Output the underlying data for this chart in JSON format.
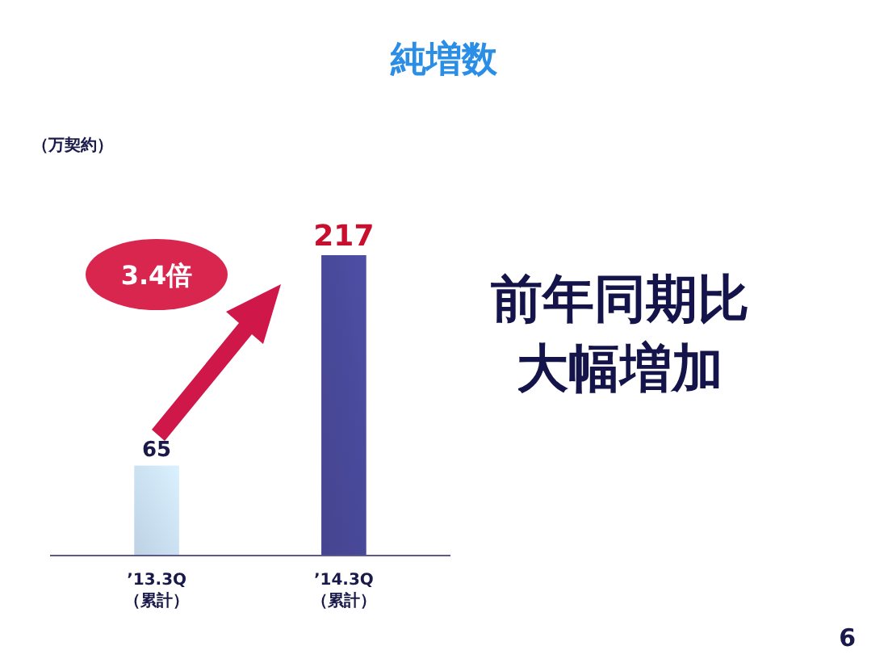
{
  "chart_data": {
    "type": "bar",
    "title": "純増数",
    "categories": [
      "’13.3Q\n（累計）",
      "’14.3Q\n（累計）"
    ],
    "values": [
      65,
      217
    ],
    "colors": [
      "#cfe4f8",
      "#4a4a9c"
    ],
    "data_labels": true,
    "annotations": [
      "（万契約）",
      "3.4倍",
      "前年同期比",
      "大幅増加",
      "6"
    ]
  }
}
